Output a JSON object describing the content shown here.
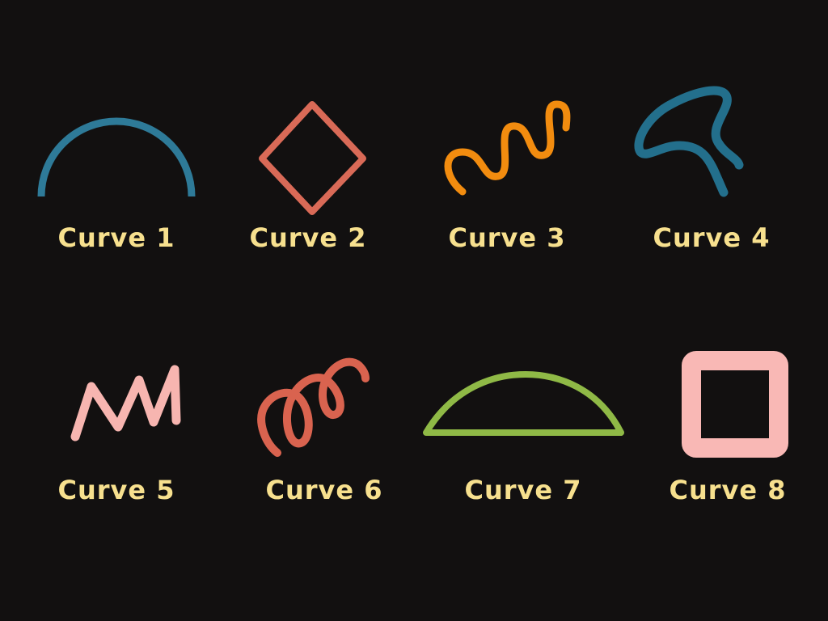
{
  "colors": {
    "background": "#121010",
    "label": "#f7e08e",
    "blue": "#2e7a98",
    "red": "#d96a57",
    "orange": "#f28c0f",
    "teal": "#236f8c",
    "pink": "#f7b5b0",
    "coral": "#d9634f",
    "green": "#8fb946",
    "lightpink": "#f9b8b5"
  },
  "curves": [
    {
      "label": "Curve 1",
      "shape": "semicircle-arc",
      "color": "#2e7a98"
    },
    {
      "label": "Curve 2",
      "shape": "diamond",
      "color": "#d96a57"
    },
    {
      "label": "Curve 3",
      "shape": "wavy-squiggle",
      "color": "#f28c0f"
    },
    {
      "label": "Curve 4",
      "shape": "abstract-loop",
      "color": "#236f8c"
    },
    {
      "label": "Curve 5",
      "shape": "zigzag",
      "color": "#f7b5b0"
    },
    {
      "label": "Curve 6",
      "shape": "spiral-coil",
      "color": "#d9634f"
    },
    {
      "label": "Curve 7",
      "shape": "closed-semicircle",
      "color": "#8fb946"
    },
    {
      "label": "Curve 8",
      "shape": "square-frame",
      "color": "#f9b8b5"
    }
  ]
}
